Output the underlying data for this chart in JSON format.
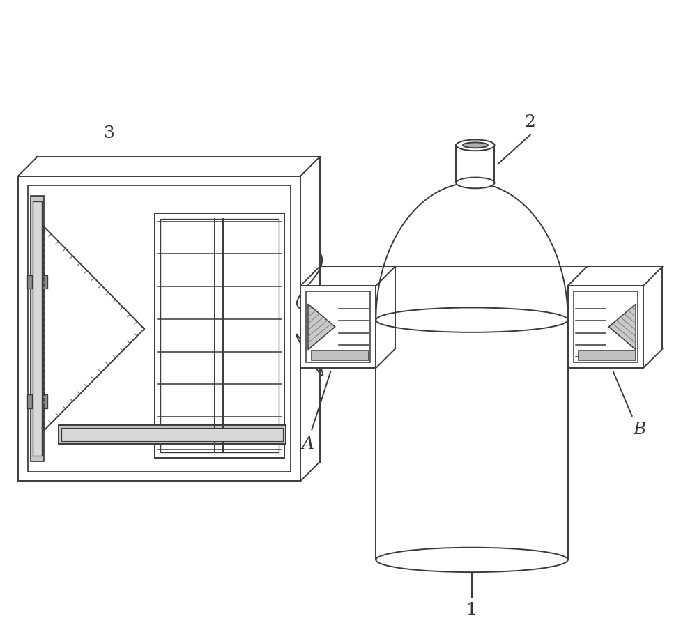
{
  "bg_color": "#ffffff",
  "line_color": "#3a3a3a",
  "line_width": 1.4,
  "label_color": "#333333",
  "figsize": [
    10.0,
    8.94
  ],
  "label_fontsize": 18
}
